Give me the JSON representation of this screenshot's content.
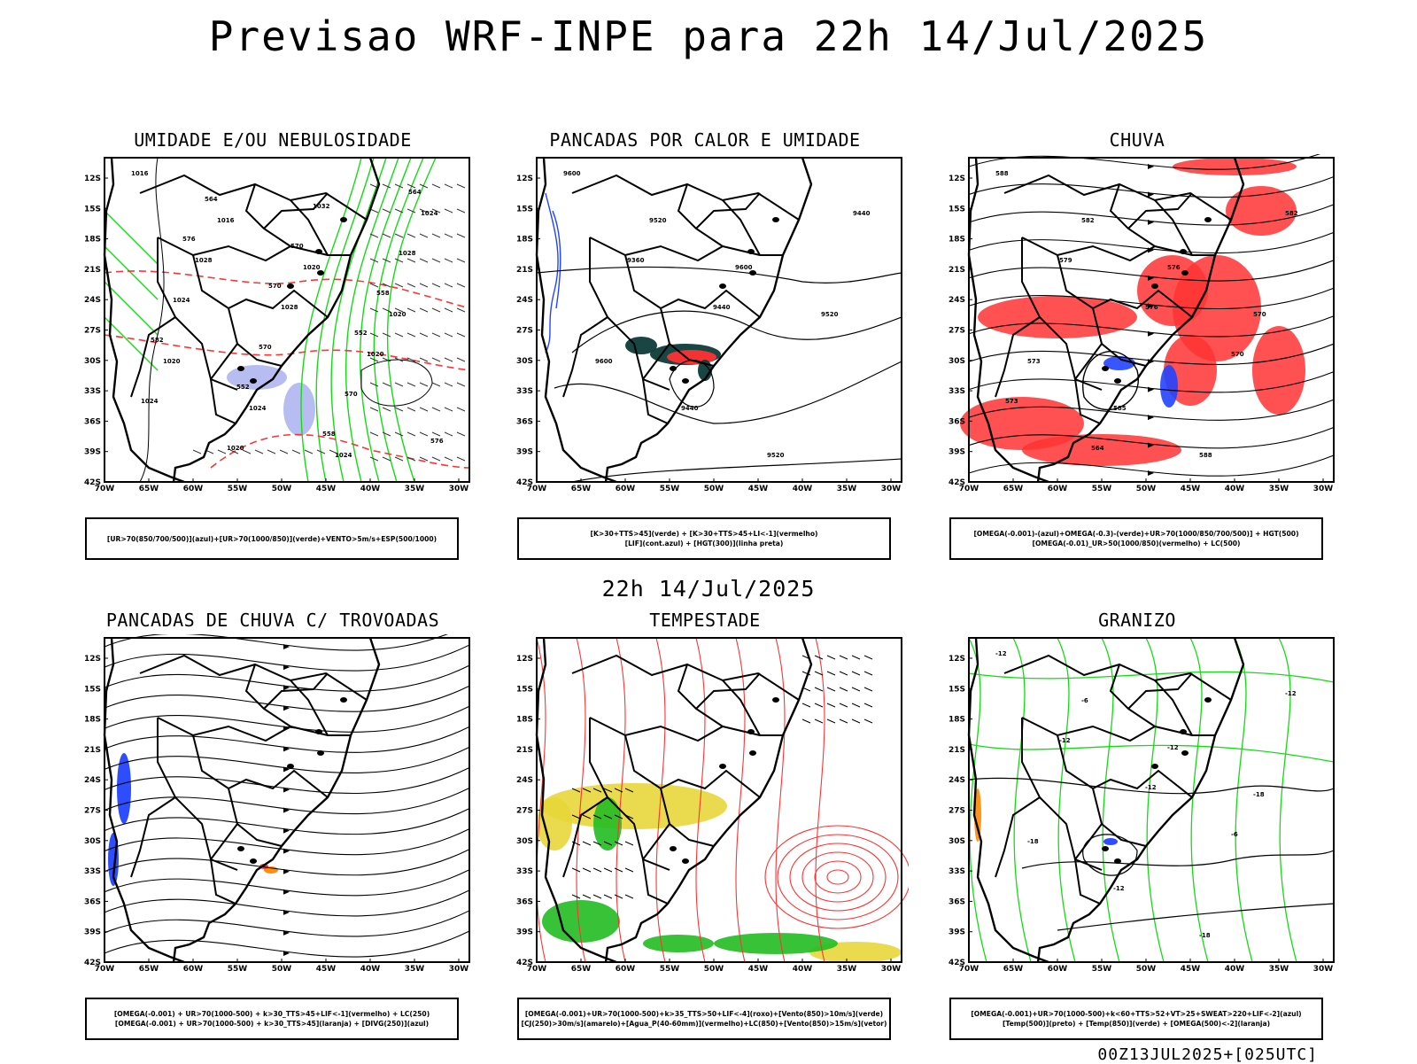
{
  "main_title": "Previsao WRF-INPE  para 22h 14/Jul/2025",
  "middle_title": "22h 14/Jul/2025",
  "footer": "00Z13JUL2025+[025UTC]",
  "axes": {
    "lat_labels": [
      "12S",
      "15S",
      "18S",
      "21S",
      "24S",
      "27S",
      "30S",
      "33S",
      "36S",
      "39S",
      "42S"
    ],
    "lon_labels": [
      "70W",
      "65W",
      "60W",
      "55W",
      "50W",
      "45W",
      "40W",
      "35W",
      "30W"
    ]
  },
  "colors": {
    "green": "#11dd11",
    "red": "#ff3333",
    "blue": "#2244ff",
    "lavender": "#aab0ee",
    "yellow": "#e8d63a",
    "orange": "#ff8800",
    "darkteal": "#0d3b38"
  },
  "panels": [
    {
      "title": "UMIDADE E/OU NEBULOSIDADE",
      "legend": [
        "[UR>70(850/700/500)](azul)+[UR>70(1000/850)](verde)+VENTO>5m/s+ESP(500/1000)"
      ],
      "contour_labels": [
        "1016",
        "1016",
        "1020",
        "1020",
        "1020",
        "1024",
        "1024",
        "1024",
        "1028",
        "1028",
        "1020",
        "1024",
        "1020",
        "1032",
        "1028",
        "1024",
        "570",
        "570",
        "576",
        "564",
        "570",
        "558",
        "582",
        "552",
        "558",
        "564",
        "576",
        "570",
        "552"
      ]
    },
    {
      "title": "PANCADAS POR CALOR E UMIDADE",
      "legend": [
        "[K>30+TTS>45](verde) + [K>30+TTS>45+LI<-1](vermelho)",
        "[LIF](cont.azul) + [HGT(300)](linha preta)"
      ],
      "contour_labels": [
        "9600",
        "9520",
        "9600",
        "9520",
        "9600",
        "9440",
        "9520",
        "9440",
        "9360",
        "9440"
      ]
    },
    {
      "title": "CHUVA",
      "legend": [
        "[OMEGA(-0.001)-(azul)+OMEGA(-0.3)-(verde)+UR>70(1000/850/700/500)] + HGT(500)",
        "[OMEGA(-0.01)_UR>50(1000/850)(vermelho) + LC(500)"
      ],
      "contour_labels": [
        "588",
        "582",
        "576",
        "570",
        "573",
        "585",
        "588",
        "582",
        "579",
        "576",
        "570",
        "573",
        "564"
      ]
    },
    {
      "title": "PANCADAS DE CHUVA C/ TROVOADAS",
      "legend": [
        "[OMEGA(-0.001) + UR>70(1000-500) + k>30_TTS>45+LIF<-1](vermelho) + LC(250)",
        "[OMEGA(-0.001) + UR>70(1000-500) + k>30_TTS>45](laranja) + [DIVG(250)](azul)"
      ],
      "contour_labels": []
    },
    {
      "title": "TEMPESTADE",
      "legend": [
        "[OMEGA(-0.001)+UR>70(1000-500)+k>35_TTS>50+LIF<-4](roxo)+[Vento(850)>10m/s](verde)",
        "[CJ(250)>30m/s](amarelo)+[Agua_P(40-60mm)](vermelho)+LC(850)+[Vento(850)>15m/s](vetor)"
      ],
      "contour_labels": []
    },
    {
      "title": "GRANIZO",
      "legend": [
        "[OMEGA(-0.001)+UR>70(1000-500)+k<60+TTS>52+VT>25+SWEAT>220+LIF<-2](azul)",
        "[Temp(500)](preto) + [Temp(850)](verde) + [OMEGA(500)<-2](laranja)"
      ],
      "contour_labels": [
        "-12",
        "-6",
        "-12",
        "-18",
        "-18",
        "-12",
        "-18",
        "-12",
        "-12",
        "-12",
        "-6"
      ]
    }
  ]
}
